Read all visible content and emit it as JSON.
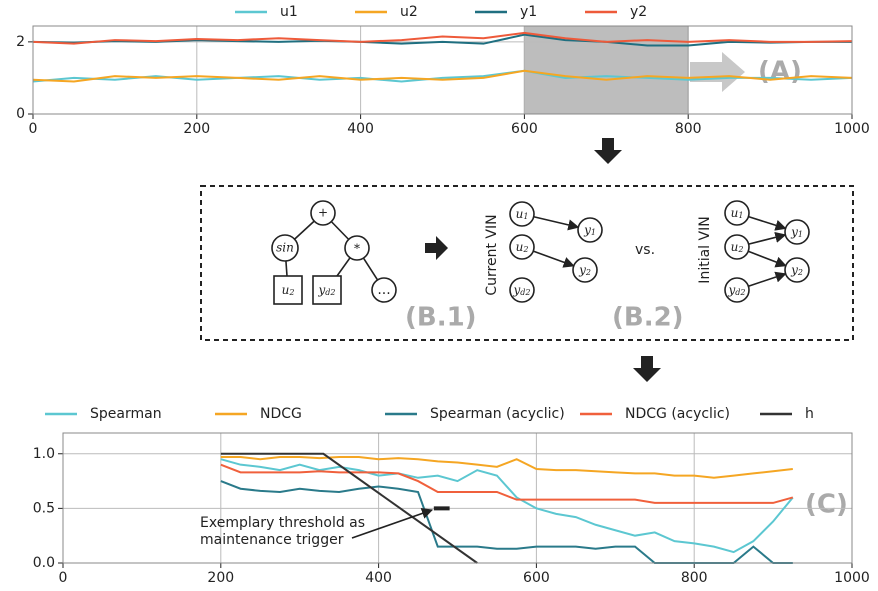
{
  "chart_data": [
    {
      "type": "line",
      "x": [
        0,
        50,
        100,
        150,
        200,
        250,
        300,
        350,
        400,
        450,
        500,
        550,
        600,
        650,
        700,
        750,
        800,
        850,
        900,
        950,
        1000
      ],
      "series": [
        {
          "name": "u1",
          "color": "#5cc7d1",
          "values": [
            0.9,
            1.0,
            0.95,
            1.05,
            0.95,
            1.0,
            1.05,
            0.95,
            1.0,
            0.9,
            1.0,
            1.05,
            1.2,
            1.0,
            1.05,
            1.0,
            0.95,
            1.0,
            1.0,
            0.95,
            1.0
          ]
        },
        {
          "name": "u2",
          "color": "#f5a623",
          "values": [
            0.95,
            0.9,
            1.05,
            1.0,
            1.05,
            1.0,
            0.95,
            1.05,
            0.95,
            1.0,
            0.95,
            1.0,
            1.2,
            1.05,
            0.95,
            1.05,
            1.0,
            1.05,
            0.95,
            1.05,
            1.0
          ]
        },
        {
          "name": "y1",
          "color": "#1f6f80",
          "values": [
            2.0,
            1.98,
            2.02,
            2.0,
            2.05,
            2.02,
            2.0,
            2.03,
            2.0,
            1.95,
            2.0,
            1.95,
            2.2,
            2.05,
            2.0,
            1.9,
            1.9,
            2.0,
            1.98,
            2.0,
            2.0
          ]
        },
        {
          "name": "y2",
          "color": "#ee5a3a",
          "values": [
            2.0,
            1.95,
            2.05,
            2.02,
            2.08,
            2.05,
            2.1,
            2.05,
            2.0,
            2.05,
            2.15,
            2.1,
            2.25,
            2.1,
            2.0,
            2.05,
            2.0,
            2.05,
            2.0,
            2.0,
            2.02
          ]
        }
      ],
      "xlim": [
        0,
        1000
      ],
      "xticks": [
        0,
        200,
        400,
        600,
        800,
        1000
      ],
      "ylim": [
        0,
        2.44
      ],
      "yticks": [
        0,
        2
      ],
      "grid": true,
      "legend": "top",
      "highlight": [
        600,
        800
      ]
    },
    {
      "type": "line",
      "x": [
        200,
        225,
        250,
        275,
        300,
        325,
        350,
        375,
        400,
        425,
        450,
        475,
        500,
        525,
        550,
        575,
        600,
        625,
        650,
        675,
        700,
        725,
        750,
        775,
        800,
        825,
        850,
        875,
        900,
        925
      ],
      "series": [
        {
          "name": "Spearman",
          "color": "#5cc7d1",
          "values": [
            0.95,
            0.9,
            0.88,
            0.85,
            0.9,
            0.85,
            0.88,
            0.85,
            0.8,
            0.82,
            0.78,
            0.8,
            0.75,
            0.85,
            0.8,
            0.6,
            0.5,
            0.45,
            0.42,
            0.35,
            0.3,
            0.25,
            0.28,
            0.2,
            0.18,
            0.15,
            0.1,
            0.2,
            0.38,
            0.6
          ]
        },
        {
          "name": "NDCG",
          "color": "#f5a623",
          "values": [
            0.97,
            0.97,
            0.95,
            0.97,
            0.97,
            0.96,
            0.97,
            0.97,
            0.95,
            0.96,
            0.95,
            0.93,
            0.92,
            0.9,
            0.88,
            0.95,
            0.86,
            0.85,
            0.85,
            0.84,
            0.83,
            0.82,
            0.82,
            0.8,
            0.8,
            0.78,
            0.8,
            0.82,
            0.84,
            0.86
          ]
        },
        {
          "name": "Spearman (acyclic)",
          "color": "#2a7a8a",
          "values": [
            0.75,
            0.68,
            0.66,
            0.65,
            0.68,
            0.66,
            0.65,
            0.68,
            0.7,
            0.68,
            0.65,
            0.15,
            0.15,
            0.15,
            0.13,
            0.13,
            0.15,
            0.15,
            0.15,
            0.13,
            0.15,
            0.15,
            0,
            0,
            0,
            0,
            0,
            0.15,
            0,
            0
          ]
        },
        {
          "name": "NDCG (acyclic)",
          "color": "#f0603c",
          "values": [
            0.9,
            0.83,
            0.83,
            0.83,
            0.83,
            0.84,
            0.83,
            0.83,
            0.83,
            0.82,
            0.75,
            0.65,
            0.65,
            0.65,
            0.65,
            0.58,
            0.58,
            0.58,
            0.58,
            0.58,
            0.58,
            0.58,
            0.55,
            0.55,
            0.55,
            0.55,
            0.55,
            0.55,
            0.55,
            0.6
          ]
        }
      ],
      "h": {
        "name": "h",
        "color": "#333333",
        "x": [
          200,
          330,
          525
        ],
        "values": [
          1.0,
          1.0,
          0
        ]
      },
      "xlim": [
        0,
        1000
      ],
      "xticks": [
        0,
        200,
        400,
        600,
        800,
        1000
      ],
      "ylim": [
        0,
        1.19
      ],
      "yticks": [
        {
          "value": 0,
          "label": "0.0"
        },
        {
          "value": 0.5,
          "label": "0.5"
        },
        {
          "value": 1,
          "label": "1.0"
        }
      ],
      "grid": true,
      "legend": "top",
      "annotation": {
        "lines": [
          "Exemplary threshold as",
          "maintenance trigger"
        ],
        "threshold": {
          "x": [
            470,
            490
          ],
          "value": 0.5
        }
      }
    }
  ],
  "diagram": {
    "labels": [
      "(A)",
      "(B.1)",
      "(B.2)",
      "(C)"
    ],
    "tree": [
      {
        "label": "+"
      },
      {
        "label": "sin"
      },
      {
        "label": "*"
      },
      {
        "label": "u",
        "sub": "2"
      },
      {
        "label": "y",
        "sub": "d2"
      },
      {
        "label": "..."
      }
    ],
    "current_vin": {
      "title": "Current VIN",
      "nodes": [
        {
          "label": "u",
          "sub": "1"
        },
        {
          "label": "u",
          "sub": "2"
        },
        {
          "label": "y",
          "sub": "d2"
        },
        {
          "label": "y",
          "sub": "1"
        },
        {
          "label": "y",
          "sub": "2"
        }
      ]
    },
    "vs": "vs.",
    "initial_vin": {
      "title": "Initial VIN",
      "nodes": [
        {
          "label": "u",
          "sub": "1"
        },
        {
          "label": "u",
          "sub": "2"
        },
        {
          "label": "y",
          "sub": "d2"
        },
        {
          "label": "y",
          "sub": "1"
        },
        {
          "label": "y",
          "sub": "2"
        }
      ]
    }
  }
}
